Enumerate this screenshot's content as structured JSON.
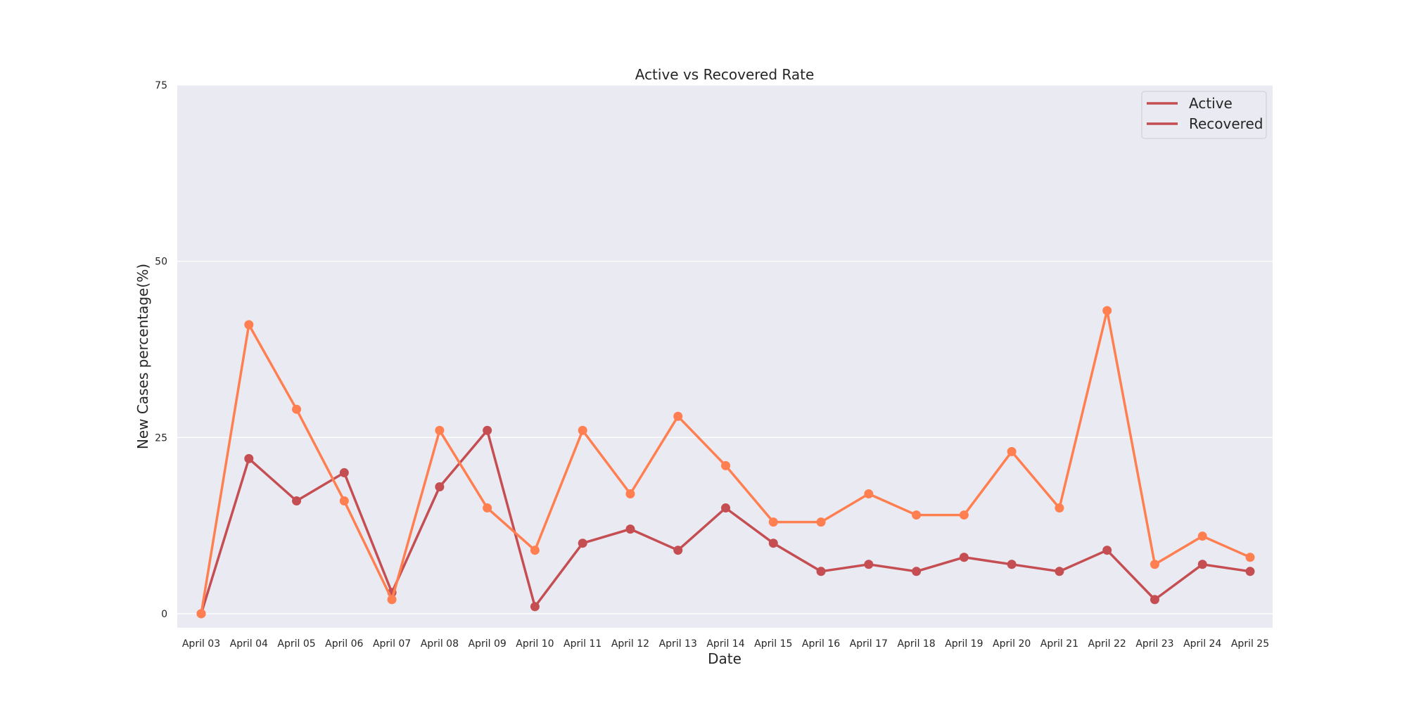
{
  "chart_data": {
    "type": "line",
    "title": "Active vs Recovered Rate",
    "xlabel": "Date",
    "ylabel": "New Cases percentage(%)",
    "ylim": [
      -2,
      75
    ],
    "yticks": [
      0,
      25,
      50,
      75
    ],
    "grid": true,
    "legend_position": "top-right",
    "legend": [
      "Active",
      "Recovered"
    ],
    "legend_line_color": "#c44e52",
    "categories": [
      "April 03",
      "April 04",
      "April 05",
      "April 06",
      "April 07",
      "April 08",
      "April 09",
      "April 10",
      "April 11",
      "April 12",
      "April 13",
      "April 14",
      "April 15",
      "April 16",
      "April 17",
      "April 18",
      "April 19",
      "April 20",
      "April 21",
      "April 22",
      "April 23",
      "April 24",
      "April 25"
    ],
    "series": [
      {
        "color": "#c44e52",
        "values": [
          0,
          22,
          16,
          20,
          3,
          18,
          26,
          1,
          10,
          12,
          9,
          15,
          10,
          6,
          7,
          6,
          8,
          7,
          6,
          9,
          2,
          7,
          6
        ]
      },
      {
        "color": "#ff7f50",
        "values": [
          0,
          41,
          29,
          16,
          2,
          26,
          15,
          9,
          26,
          17,
          28,
          21,
          13,
          13,
          17,
          14,
          14,
          23,
          15,
          43,
          7,
          11,
          8
        ]
      }
    ]
  }
}
